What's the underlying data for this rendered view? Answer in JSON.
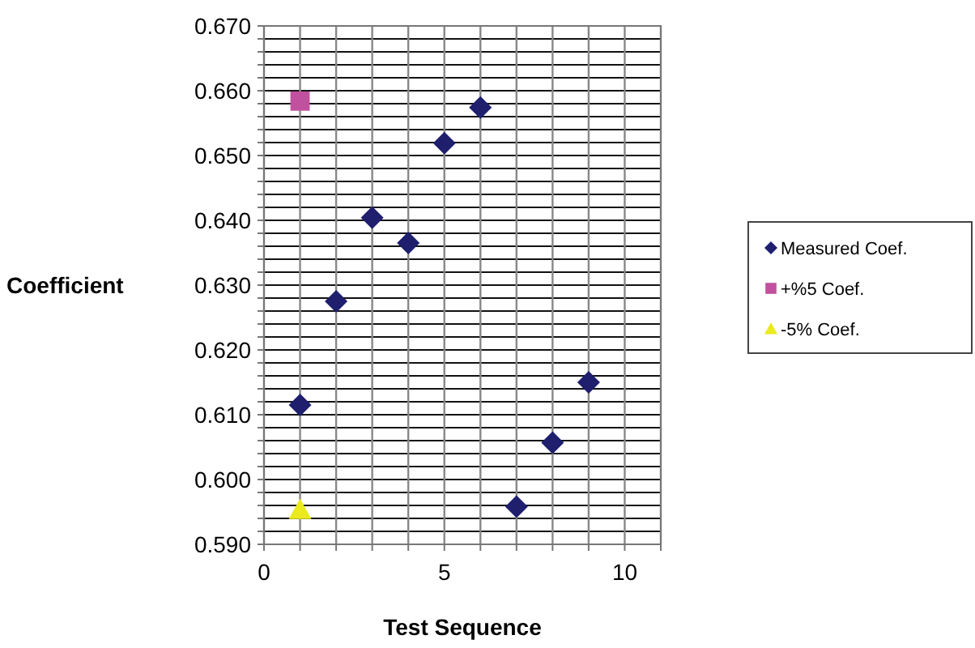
{
  "chart_data": {
    "type": "scatter",
    "xlabel": "Test Sequence",
    "ylabel": "Coefficient",
    "xlim": [
      0,
      11
    ],
    "ylim": [
      0.59,
      0.67
    ],
    "xticks": [
      0,
      {
        "value": 1,
        "label": null
      },
      {
        "value": 2,
        "label": null
      },
      {
        "value": 3,
        "label": null
      },
      {
        "value": 4,
        "label": null
      },
      5,
      {
        "value": 6,
        "label": null
      },
      {
        "value": 7,
        "label": null
      },
      {
        "value": 8,
        "label": null
      },
      {
        "value": 9,
        "label": null
      },
      10,
      {
        "value": 11,
        "label": null
      }
    ],
    "yticks": [
      {
        "value": 0.59,
        "label": "0.590"
      },
      {
        "value": 0.592,
        "label": null
      },
      {
        "value": 0.594,
        "label": null
      },
      {
        "value": 0.596,
        "label": null
      },
      {
        "value": 0.598,
        "label": null
      },
      {
        "value": 0.6,
        "label": "0.600"
      },
      {
        "value": 0.602,
        "label": null
      },
      {
        "value": 0.604,
        "label": null
      },
      {
        "value": 0.606,
        "label": null
      },
      {
        "value": 0.608,
        "label": null
      },
      {
        "value": 0.61,
        "label": "0.610"
      },
      {
        "value": 0.612,
        "label": null
      },
      {
        "value": 0.614,
        "label": null
      },
      {
        "value": 0.616,
        "label": null
      },
      {
        "value": 0.618,
        "label": null
      },
      {
        "value": 0.62,
        "label": "0.620"
      },
      {
        "value": 0.622,
        "label": null
      },
      {
        "value": 0.624,
        "label": null
      },
      {
        "value": 0.626,
        "label": null
      },
      {
        "value": 0.628,
        "label": null
      },
      {
        "value": 0.63,
        "label": "0.630"
      },
      {
        "value": 0.632,
        "label": null
      },
      {
        "value": 0.634,
        "label": null
      },
      {
        "value": 0.636,
        "label": null
      },
      {
        "value": 0.638,
        "label": null
      },
      {
        "value": 0.64,
        "label": "0.640"
      },
      {
        "value": 0.642,
        "label": null
      },
      {
        "value": 0.644,
        "label": null
      },
      {
        "value": 0.646,
        "label": null
      },
      {
        "value": 0.648,
        "label": null
      },
      {
        "value": 0.65,
        "label": "0.650"
      },
      {
        "value": 0.652,
        "label": null
      },
      {
        "value": 0.654,
        "label": null
      },
      {
        "value": 0.656,
        "label": null
      },
      {
        "value": 0.658,
        "label": null
      },
      {
        "value": 0.66,
        "label": "0.660"
      },
      {
        "value": 0.662,
        "label": null
      },
      {
        "value": 0.664,
        "label": null
      },
      {
        "value": 0.666,
        "label": null
      },
      {
        "value": 0.668,
        "label": null
      },
      {
        "value": 0.67,
        "label": "0.670"
      }
    ],
    "grid": true,
    "legend": "right",
    "series": [
      {
        "name": "Measured Coef.",
        "color": "#1f1f6e",
        "marker": "diamond",
        "x": [
          1,
          2,
          3,
          4,
          5,
          6,
          7,
          8,
          9
        ],
        "values": [
          0.6115,
          0.6275,
          0.6404,
          0.6365,
          0.6519,
          0.6574,
          0.5958,
          0.6057,
          0.615
        ]
      },
      {
        "name": "+%5 Coef.",
        "color": "#c1509e",
        "marker": "square",
        "x": [
          1
        ],
        "values": [
          0.6584
        ]
      },
      {
        "name": "-5% Coef.",
        "color": "#eaea1e",
        "marker": "triangle",
        "x": [
          1
        ],
        "values": [
          0.5953
        ]
      }
    ]
  }
}
